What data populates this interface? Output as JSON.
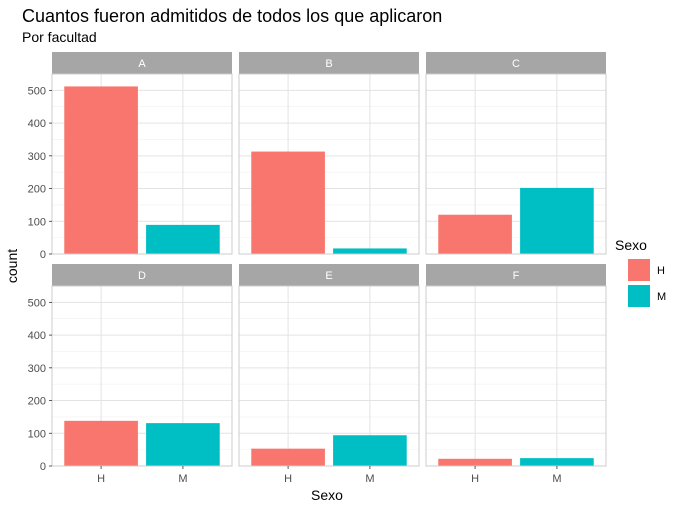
{
  "chart_data": {
    "type": "bar",
    "title": "Cuantos fueron admitidos de todos los que aplicaron",
    "subtitle": "Por facultad",
    "xlabel": "Sexo",
    "ylabel": "count",
    "categories": [
      "H",
      "M"
    ],
    "ylim": [
      0,
      550
    ],
    "yticks": [
      0,
      100,
      200,
      300,
      400,
      500
    ],
    "facets": [
      {
        "name": "A",
        "values": [
          512,
          89
        ]
      },
      {
        "name": "B",
        "values": [
          313,
          17
        ]
      },
      {
        "name": "C",
        "values": [
          120,
          202
        ]
      },
      {
        "name": "D",
        "values": [
          138,
          131
        ]
      },
      {
        "name": "E",
        "values": [
          53,
          94
        ]
      },
      {
        "name": "F",
        "values": [
          22,
          24
        ]
      }
    ],
    "legend": {
      "title": "Sexo",
      "position": "right",
      "entries": [
        {
          "label": "H",
          "color": "#F8766D"
        },
        {
          "label": "M",
          "color": "#00BFC4"
        }
      ]
    },
    "grid": true,
    "theme": "light"
  }
}
